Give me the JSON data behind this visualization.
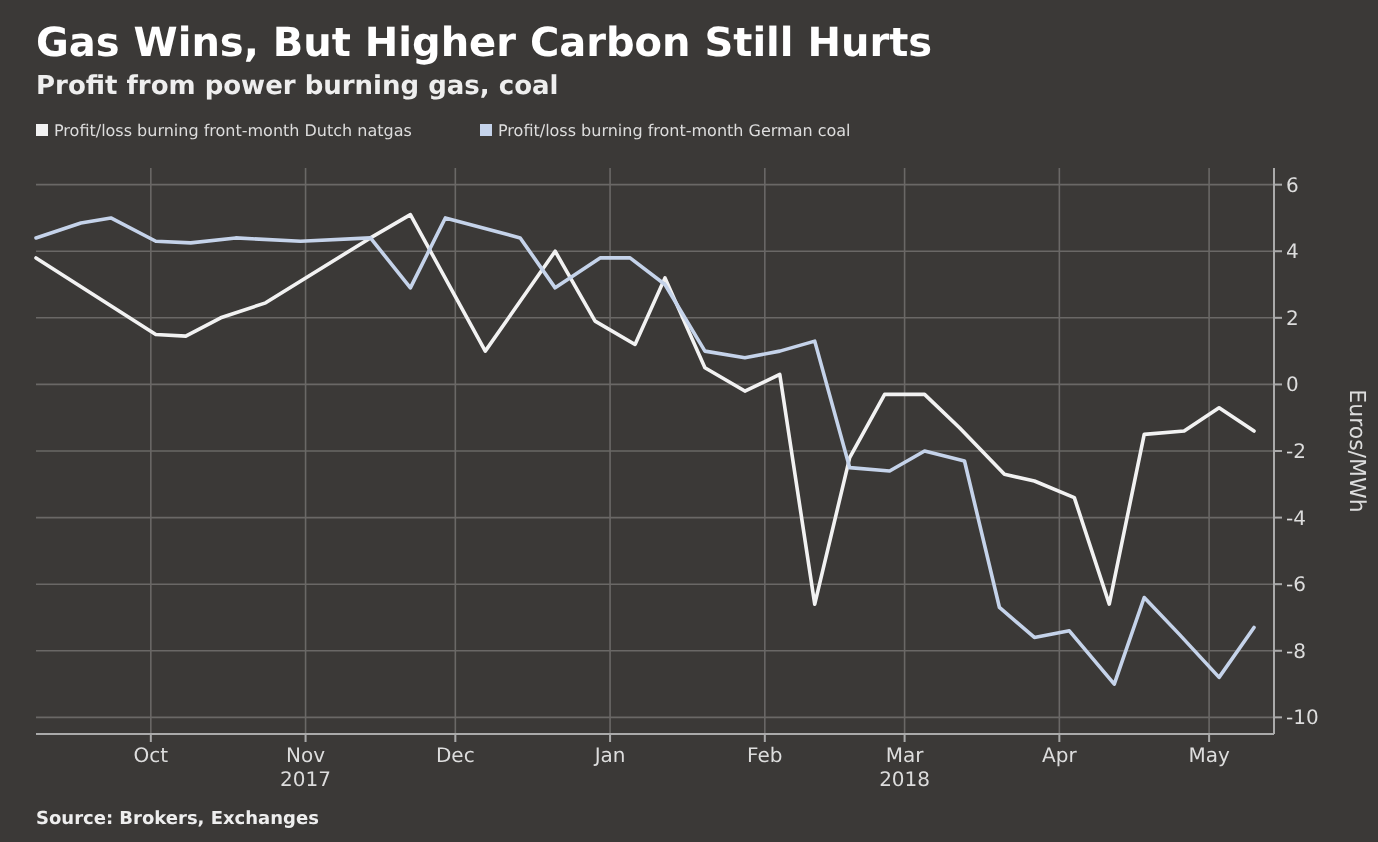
{
  "chart_data": {
    "type": "line",
    "title": "Gas Wins, But Higher Carbon Still Hurts",
    "subtitle": "Profit from power burning gas, coal",
    "ylabel": "Euros/MWh",
    "annotations": [
      "Source: Brokers, Exchanges"
    ],
    "series": [
      {
        "name": "Profit/loss burning front-month Dutch natgas",
        "color": "#f2f2f2",
        "x": [
          "2017-09-22",
          "2017-10-16",
          "2017-10-22",
          "2017-10-29",
          "2017-11-07",
          "2017-11-28",
          "2017-12-06",
          "2017-12-21",
          "2018-01-04",
          "2018-01-12",
          "2018-01-20",
          "2018-01-26",
          "2018-02-03",
          "2018-02-11",
          "2018-02-18",
          "2018-02-25",
          "2018-03-04",
          "2018-03-11",
          "2018-03-19",
          "2018-03-26",
          "2018-04-04",
          "2018-04-10",
          "2018-04-18",
          "2018-04-25",
          "2018-05-02",
          "2018-05-10",
          "2018-05-17",
          "2018-05-24"
        ],
        "values": [
          3.8,
          1.5,
          1.45,
          2.0,
          2.45,
          4.4,
          5.1,
          1.0,
          4.0,
          1.9,
          1.2,
          3.2,
          0.5,
          -0.2,
          0.3,
          -6.6,
          -2.2,
          -0.3,
          -0.3,
          -1.3,
          -2.7,
          -2.9,
          -3.4,
          -6.6,
          -1.5,
          -1.4,
          -0.7,
          -1.4
        ]
      },
      {
        "name": "Profit/loss burning front-month German coal",
        "color": "#c5d3ea",
        "x": [
          "2017-09-22",
          "2017-10-01",
          "2017-10-07",
          "2017-10-16",
          "2017-10-23",
          "2017-11-01",
          "2017-11-14",
          "2017-11-28",
          "2017-12-06",
          "2017-12-13",
          "2017-12-28",
          "2018-01-04",
          "2018-01-13",
          "2018-01-19",
          "2018-01-26",
          "2018-02-03",
          "2018-02-11",
          "2018-02-18",
          "2018-02-25",
          "2018-03-04",
          "2018-03-12",
          "2018-03-19",
          "2018-03-27",
          "2018-04-03",
          "2018-04-10",
          "2018-04-17",
          "2018-04-26",
          "2018-05-02",
          "2018-05-09",
          "2018-05-17",
          "2018-05-24"
        ],
        "values": [
          4.4,
          4.85,
          5.0,
          4.3,
          4.25,
          4.4,
          4.3,
          4.4,
          2.9,
          5.0,
          4.4,
          2.9,
          3.8,
          3.8,
          3.0,
          1.0,
          0.8,
          1.0,
          1.3,
          -2.5,
          -2.6,
          -2.0,
          -2.3,
          -6.7,
          -7.6,
          -7.4,
          -9.0,
          -6.4,
          -7.5,
          -8.8,
          -7.3
        ]
      }
    ],
    "xlim": [
      "2017-09-22",
      "2018-05-28"
    ],
    "xticks": [
      {
        "value": "2017-10-15",
        "label": "Oct"
      },
      {
        "value": "2017-11-15",
        "label": "Nov\n2017"
      },
      {
        "value": "2017-12-15",
        "label": "Dec"
      },
      {
        "value": "2018-01-15",
        "label": "Jan"
      },
      {
        "value": "2018-02-15",
        "label": "Feb"
      },
      {
        "value": "2018-03-15",
        "label": "Mar\n2018"
      },
      {
        "value": "2018-04-15",
        "label": "Apr"
      },
      {
        "value": "2018-05-15",
        "label": "May"
      }
    ],
    "ylim": [
      -10.5,
      6.5
    ],
    "yticks": [
      -10,
      -8,
      -6,
      -4,
      -2,
      0,
      2,
      4,
      6
    ],
    "grid": true,
    "legend": "top left",
    "line_style": "solid",
    "marker": "none"
  }
}
